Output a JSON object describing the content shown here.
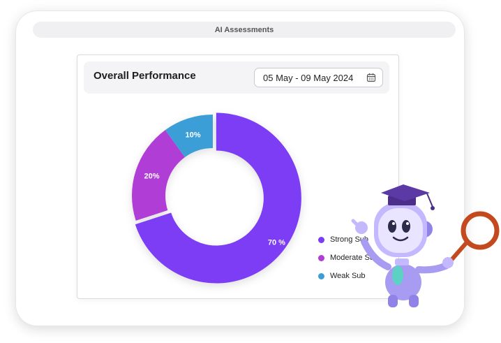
{
  "window": {
    "title": "AI Assessments"
  },
  "card": {
    "title": "Overall Performance",
    "date_range": "05 May - 09 May 2024",
    "calendar_icon": "calendar-icon"
  },
  "chart_data": {
    "type": "pie",
    "title": "Overall Performance",
    "categories": [
      "Strong Sub",
      "Moderate Sub",
      "Weak Sub"
    ],
    "values": [
      70,
      20,
      10
    ],
    "labels": [
      "70 %",
      "20%",
      "10%"
    ],
    "colors": [
      "#7b3cf5",
      "#b03dd6",
      "#3b9ed6"
    ],
    "legend_position": "bottom-right"
  },
  "illustration": {
    "name": "robot-mascot-with-graduation-cap-and-magnifier"
  }
}
